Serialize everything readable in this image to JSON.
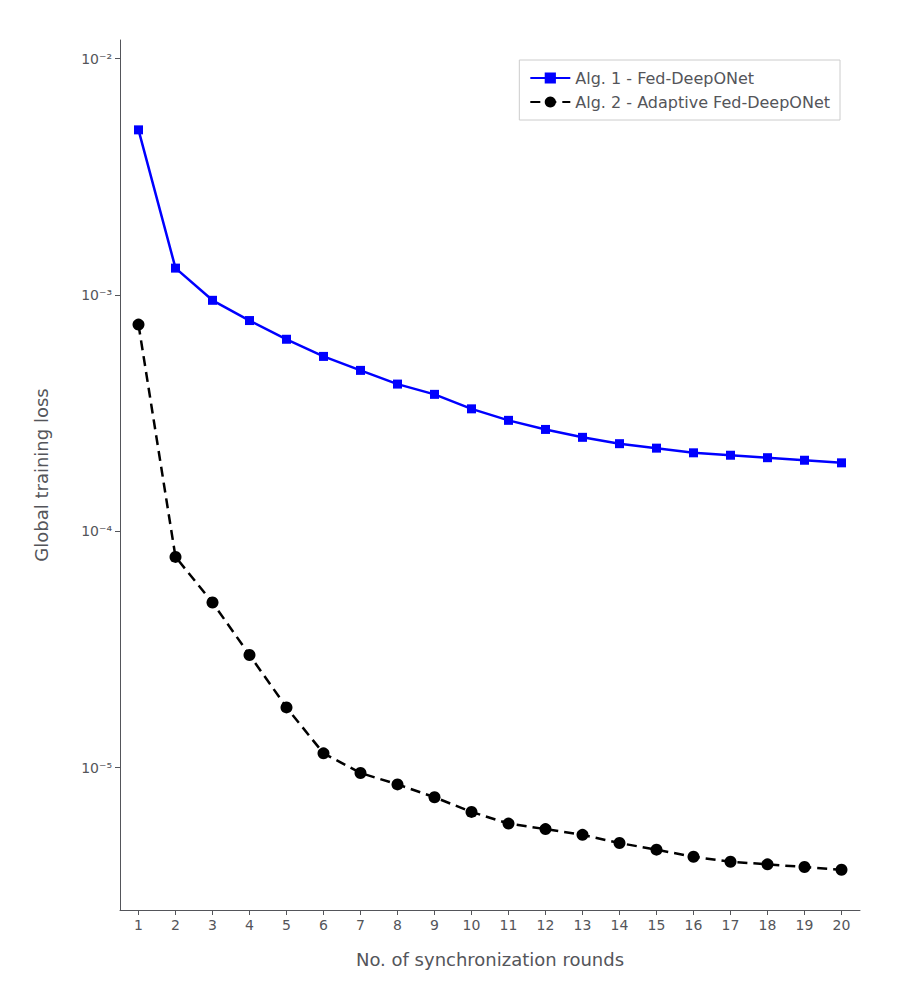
{
  "chart_data": {
    "type": "line",
    "xlabel": "No. of synchronization rounds",
    "ylabel": "Global training loss",
    "x": [
      1,
      2,
      3,
      4,
      5,
      6,
      7,
      8,
      9,
      10,
      11,
      12,
      13,
      14,
      15,
      16,
      17,
      18,
      19,
      20
    ],
    "series": [
      {
        "name": "Alg. 1 - Fed-DeepONet",
        "color": "#0000ff",
        "marker": "square",
        "line_style": "solid",
        "values": [
          0.005,
          0.0013,
          0.00095,
          0.00078,
          0.00065,
          0.00055,
          0.00048,
          0.00042,
          0.00038,
          0.00033,
          0.000295,
          0.00027,
          0.00025,
          0.000235,
          0.000225,
          0.000215,
          0.00021,
          0.000205,
          0.0002,
          0.000195
        ]
      },
      {
        "name": "Alg. 2 - Adaptive Fed-DeepONet",
        "color": "#000000",
        "marker": "circle",
        "line_style": "dashed",
        "values": [
          0.00075,
          7.8e-05,
          5e-05,
          3e-05,
          1.8e-05,
          1.15e-05,
          9.5e-06,
          8.5e-06,
          7.5e-06,
          6.5e-06,
          5.8e-06,
          5.5e-06,
          5.2e-06,
          4.8e-06,
          4.5e-06,
          4.2e-06,
          4e-06,
          3.9e-06,
          3.8e-06,
          3.7e-06
        ]
      }
    ],
    "xlim": [
      0.5,
      20.5
    ],
    "xticks": [
      1,
      2,
      3,
      4,
      5,
      6,
      7,
      8,
      9,
      10,
      11,
      12,
      13,
      14,
      15,
      16,
      17,
      18,
      19,
      20
    ],
    "ylim": [
      2.5e-06,
      0.012
    ],
    "yticks": [
      {
        "value": 1e-05,
        "label": "10⁻⁵"
      },
      {
        "value": 0.0001,
        "label": "10⁻⁴"
      },
      {
        "value": 0.001,
        "label": "10⁻³"
      },
      {
        "value": 0.01,
        "label": "10⁻²"
      }
    ],
    "log": "y",
    "grid": false,
    "legend": "upper right"
  }
}
